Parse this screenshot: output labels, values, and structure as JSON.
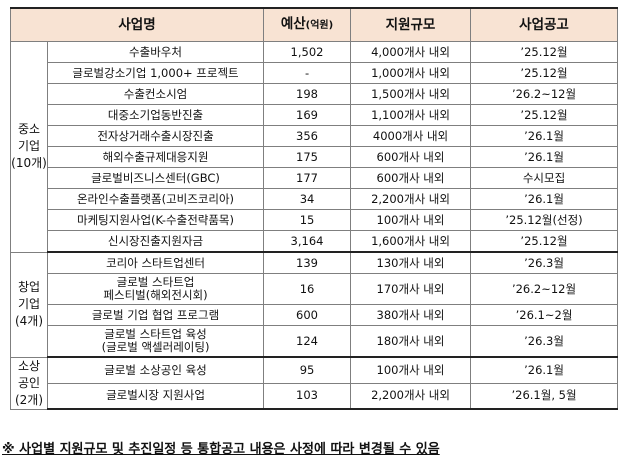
{
  "headers": {
    "program": "사업명",
    "budget": "예산",
    "budget_unit": "(억원)",
    "scale": "지원규모",
    "announcement": "사업공고"
  },
  "groups": [
    {
      "label": "중소\n기업\n(10개)",
      "rows": [
        {
          "name": "수출바우처",
          "budget": "1,502",
          "scale": "4,000개사 내외",
          "announce": "’25.12월"
        },
        {
          "name": "글로벌강소기업 1,000+ 프로젝트",
          "budget": "-",
          "scale": "1,000개사 내외",
          "announce": "’25.12월"
        },
        {
          "name": "수출컨소시엄",
          "budget": "198",
          "scale": "1,500개사 내외",
          "announce": "’26.2~12월"
        },
        {
          "name": "대중소기업동반진출",
          "budget": "169",
          "scale": "1,100개사 내외",
          "announce": "’25.12월"
        },
        {
          "name": "전자상거래수출시장진출",
          "budget": "356",
          "scale": "4000개사 내외",
          "announce": "’26.1월"
        },
        {
          "name": "해외수출규제대응지원",
          "budget": "175",
          "scale": "600개사 내외",
          "announce": "’26.1월"
        },
        {
          "name": "글로벌비즈니스센터(GBC)",
          "budget": "177",
          "scale": "600개사 내외",
          "announce": "수시모집"
        },
        {
          "name": "온라인수출플랫폼(고비즈코리아)",
          "budget": "34",
          "scale": "2,200개사 내외",
          "announce": "’26.1월"
        },
        {
          "name": "마케팅지원사업(K-수출전략품목)",
          "budget": "15",
          "scale": "100개사 내외",
          "announce": "’25.12월(선정)"
        },
        {
          "name": "신시장진출지원자금",
          "budget": "3,164",
          "scale": "1,600개사 내외",
          "announce": "’25.12월"
        }
      ]
    },
    {
      "label": "창업\n기업\n(4개)",
      "rows": [
        {
          "name": "코리아 스타트업센터",
          "budget": "139",
          "scale": "130개사 내외",
          "announce": "’26.3월"
        },
        {
          "name": "글로벌 스타트업\n페스티벌(해외전시회)",
          "budget": "16",
          "scale": "170개사 내외",
          "announce": "’26.2~12월"
        },
        {
          "name": "글로벌 기업 협업 프로그램",
          "budget": "600",
          "scale": "380개사 내외",
          "announce": "’26.1~2월"
        },
        {
          "name": "글로벌 스타트업 육성\n(글로벌 액셀러레이팅)",
          "budget": "124",
          "scale": "180개사 내외",
          "announce": "’26.3월"
        }
      ]
    },
    {
      "label": "소상\n공인\n(2개)",
      "rows": [
        {
          "name": "글로벌 소상공인 육성",
          "budget": "95",
          "scale": "100개사 내외",
          "announce": "’26.1월"
        },
        {
          "name": "글로벌시장 지원사업",
          "budget": "103",
          "scale": "2,200개사 내외",
          "announce": "’26.1월, 5월"
        }
      ]
    }
  ],
  "note": "※ 사업별 지원규모 및 추진일정 등 통합공고 내용은 사정에 따라 변경될 수 있음"
}
